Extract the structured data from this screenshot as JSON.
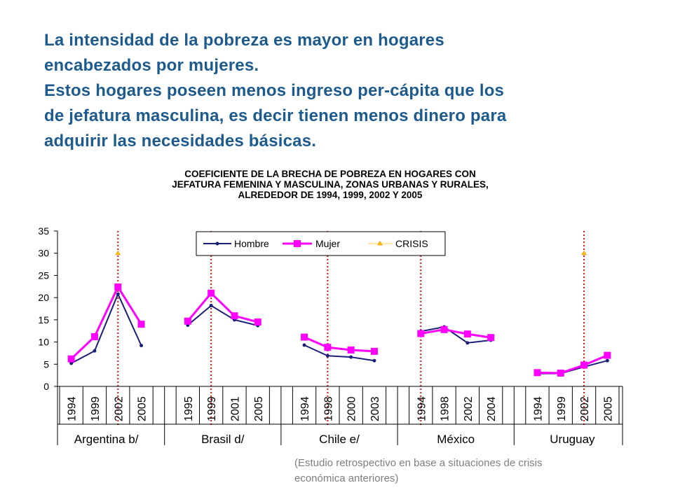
{
  "headline": {
    "line1": "La intensidad de la pobreza es mayor en hogares",
    "line2": "encabezados por mujeres.",
    "line3": "Estos hogares poseen menos ingreso per-cápita que los",
    "line4": "de jefatura masculina, es decir tienen menos dinero para",
    "line5": "adquirir las necesidades básicas."
  },
  "footnote": {
    "line1": "(Estudio retrospectivo en base a  situaciones de crisis",
    "line2": "económica anteriores)"
  },
  "chart_data": {
    "type": "line",
    "title_lines": [
      "COEFICIENTE DE LA BRECHA DE POBREZA  EN HOGARES CON",
      "JEFATURA FEMENINA Y MASCULINA, ZONAS URBANAS Y RURALES,",
      "ALREDEDOR DE 1994, 1999, 2002 Y 2005"
    ],
    "ylim": [
      0,
      35
    ],
    "yticks": [
      "0",
      "5",
      "10",
      "15",
      "20",
      "25",
      "30",
      "35"
    ],
    "legend_position": "top-center",
    "groups": [
      {
        "name": "Argentina b/",
        "years": [
          "1994",
          "1999",
          "2002",
          "2005"
        ],
        "hombre": [
          5.2,
          8.0,
          20.8,
          9.2
        ],
        "mujer": [
          6.2,
          11.2,
          22.4,
          14.0
        ],
        "crisis_year": "2002",
        "crisis_value": 30
      },
      {
        "name": "Brasil d/",
        "years": [
          "1995",
          "1999",
          "2001",
          "2005"
        ],
        "hombre": [
          13.8,
          18.2,
          15.0,
          13.7
        ],
        "mujer": [
          14.7,
          21.0,
          15.9,
          14.5
        ],
        "crisis_year": "1999",
        "crisis_value": null
      },
      {
        "name": "Chile e/",
        "years": [
          "1994",
          "1998",
          "2000",
          "2003"
        ],
        "hombre": [
          9.3,
          6.9,
          6.6,
          5.8
        ],
        "mujer": [
          11.1,
          8.8,
          8.2,
          7.9
        ],
        "crisis_year": "1998",
        "crisis_value": null
      },
      {
        "name": "México",
        "years": [
          "1994",
          "1998",
          "2002",
          "2004"
        ],
        "hombre": [
          12.4,
          13.4,
          9.8,
          10.4
        ],
        "mujer": [
          11.9,
          12.8,
          11.8,
          11.0
        ],
        "crisis_year": "1994",
        "crisis_value": null
      },
      {
        "name": "Uruguay",
        "years": [
          "1994",
          "1999",
          "2002",
          "2005"
        ],
        "hombre": [
          2.9,
          2.9,
          4.4,
          5.8
        ],
        "mujer": [
          3.1,
          3.0,
          4.8,
          7.0
        ],
        "crisis_year": "2002",
        "crisis_value": 30
      }
    ],
    "series": [
      {
        "name": "Hombre",
        "key": "hombre",
        "color": "#1a1f7a"
      },
      {
        "name": "Mujer",
        "key": "mujer",
        "color": "#ff00ff"
      },
      {
        "name": "CRISIS",
        "key": "crisis",
        "color": "#ff9900"
      }
    ],
    "crisis_line_color": "#e01010"
  }
}
